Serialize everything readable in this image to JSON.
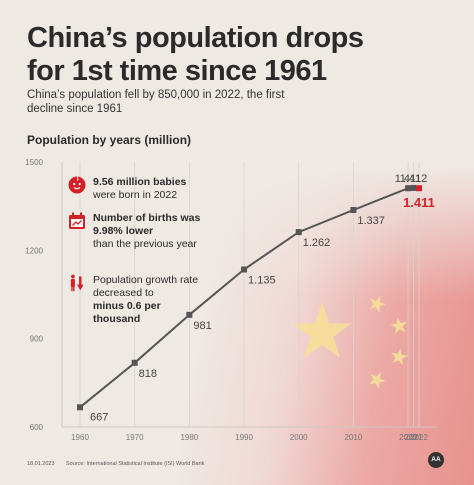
{
  "title_line1": "China’s population drops",
  "title_line2": "for 1st time since 1961",
  "subtitle_line1": "China’s population fell by 850,000 in 2022, the first",
  "subtitle_line2": "decline since 1961",
  "y_title": "Population by years (million)",
  "facts": [
    {
      "icon": "baby-icon",
      "bold": "9.56 million babies",
      "normal": "were born in 2022"
    },
    {
      "icon": "calendar-icon",
      "bold": "Number of births was 9.98% lower",
      "normal": "than the previous year"
    },
    {
      "icon": "arrow-down-icon",
      "normal_pre": "Population growth rate decreased to",
      "bold": "minus 0.6 per thousand"
    }
  ],
  "footer_date": "18.01.2023",
  "footer_source": "Source: International Statistical Institute (ISI) World Bank",
  "logo_text": "AA",
  "colors": {
    "line": "#555555",
    "highlight": "#d62027",
    "flag_star": "#f6dd9a",
    "text": "#2b2b2b"
  },
  "chart_data": {
    "type": "line",
    "x": [
      1960,
      1970,
      1980,
      1990,
      2000,
      2010,
      2020,
      2021,
      2022
    ],
    "y": [
      667,
      818,
      981,
      1135,
      1262,
      1337,
      1411,
      1412,
      1411
    ],
    "labels": [
      "667",
      "818",
      "981",
      "1.135",
      "1.262",
      "1.337",
      "1.411",
      "1.412",
      "1.411"
    ],
    "highlight_last": true,
    "xticks": [
      "1960",
      "1970",
      "1980",
      "1990",
      "2000",
      "2010",
      "2020",
      "2021",
      "2022"
    ],
    "yticks": [
      600,
      900,
      1200,
      1500
    ],
    "ylim": [
      600,
      1500
    ],
    "ylabel": "Population by years (million)",
    "grid": "vertical"
  }
}
